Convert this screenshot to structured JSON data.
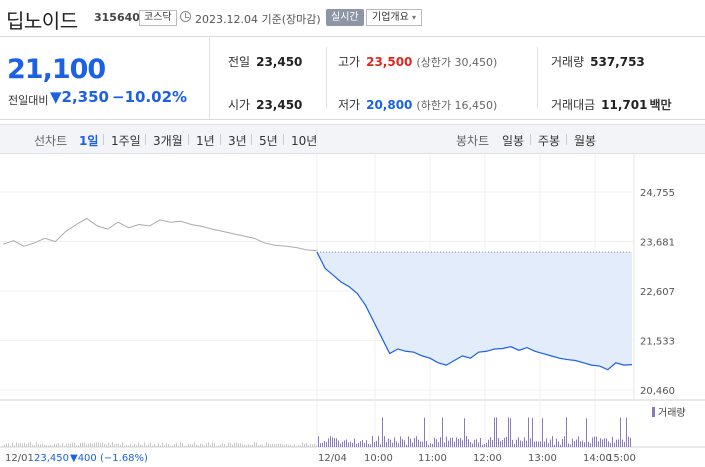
{
  "header": {
    "name": "딥노이드",
    "code": "315640",
    "market": "코스닥",
    "date": "2023.12.04 기준(장마감)",
    "realtime": "실시간",
    "overview": "기업개요"
  },
  "summary": {
    "price": "21,100",
    "change_label": "전일대비",
    "change": "▼2,350",
    "change_pct": "−10.02%",
    "prev_close": {
      "label": "전일",
      "value": "23,450"
    },
    "open": {
      "label": "시가",
      "value": "23,450"
    },
    "high": {
      "label": "고가",
      "value": "23,500",
      "sub": "(상한가 30,450)"
    },
    "low": {
      "label": "저가",
      "value": "20,800",
      "sub": "(하한가 16,450)"
    },
    "volume": {
      "label": "거래량",
      "value": "537,753"
    },
    "amount": {
      "label": "거래대금",
      "value": "11,701",
      "unit": "백만"
    }
  },
  "tabs": {
    "line_caption": "선차트",
    "line_items": [
      "1일",
      "1주일",
      "3개월",
      "1년",
      "3년",
      "5년",
      "10년"
    ],
    "active": "1일",
    "candle_caption": "봉차트",
    "candle_items": [
      "일봉",
      "주봉",
      "월봉"
    ]
  },
  "chart_data": {
    "type": "line",
    "y_ticks": [
      "24,755",
      "23,681",
      "22,607",
      "21,533",
      "20,460"
    ],
    "ylim": [
      20460,
      24755
    ],
    "x_labels": [
      "12/01",
      "12/04",
      "10:00",
      "11:00",
      "12:00",
      "13:00",
      "14:00",
      "15:00"
    ],
    "prev_close_line": 23450,
    "prev_day": {
      "label": "12/01",
      "values": [
        23620,
        23700,
        23580,
        23650,
        23750,
        23680,
        23900,
        24050,
        24180,
        24020,
        23950,
        24100,
        23980,
        24050,
        24020,
        24150,
        24100,
        24120,
        24050,
        24010,
        23950,
        23900,
        23850,
        23800,
        23750,
        23650,
        23600,
        23580,
        23550,
        23500,
        23480
      ]
    },
    "today": {
      "label": "12/04",
      "values": [
        23450,
        23100,
        22950,
        22800,
        22700,
        22550,
        22300,
        21950,
        21600,
        21250,
        21350,
        21300,
        21280,
        21200,
        21150,
        21050,
        21000,
        21100,
        21200,
        21150,
        21280,
        21300,
        21350,
        21360,
        21400,
        21320,
        21380,
        21300,
        21250,
        21200,
        21150,
        21120,
        21100,
        21050,
        21000,
        20980,
        20900,
        21050,
        21000,
        21010
      ]
    },
    "volume_label": "거래량",
    "footer": {
      "date": "12/01",
      "value": "23,450",
      "change": "▼400",
      "pct": "(−1.68%)"
    },
    "colors": {
      "line": "#1b60e6",
      "fill": "#e3ecfb",
      "prev": "#aaaaaa",
      "volume": "#8a7ab8",
      "prev_volume": "#c8c8c8"
    }
  }
}
